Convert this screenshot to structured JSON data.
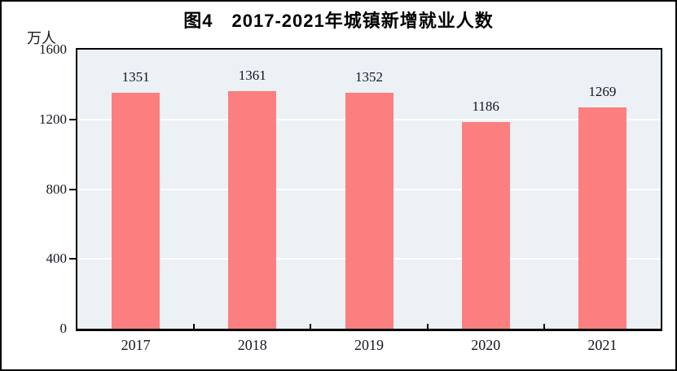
{
  "figure": {
    "frame_color": "#000000",
    "background": "#ffffff"
  },
  "chart_data": {
    "type": "bar",
    "title": "图4　2017-2021年城镇新增就业人数",
    "unit_label": "万人",
    "categories": [
      "2017",
      "2018",
      "2019",
      "2020",
      "2021"
    ],
    "values": [
      1351,
      1361,
      1352,
      1186,
      1269
    ],
    "data_labels_shown": true,
    "xlabel": "",
    "ylabel": "万人",
    "ylim": [
      0,
      1600
    ],
    "yticks": [
      0,
      400,
      800,
      1200,
      1600
    ],
    "grid": true,
    "legend": "none",
    "colors": {
      "bar_fill": "#fc7f7f",
      "plot_background": "#ebf1f5",
      "gridline": "#ffffff",
      "axis_frame": "#000000",
      "label_text": "#15151f"
    }
  }
}
